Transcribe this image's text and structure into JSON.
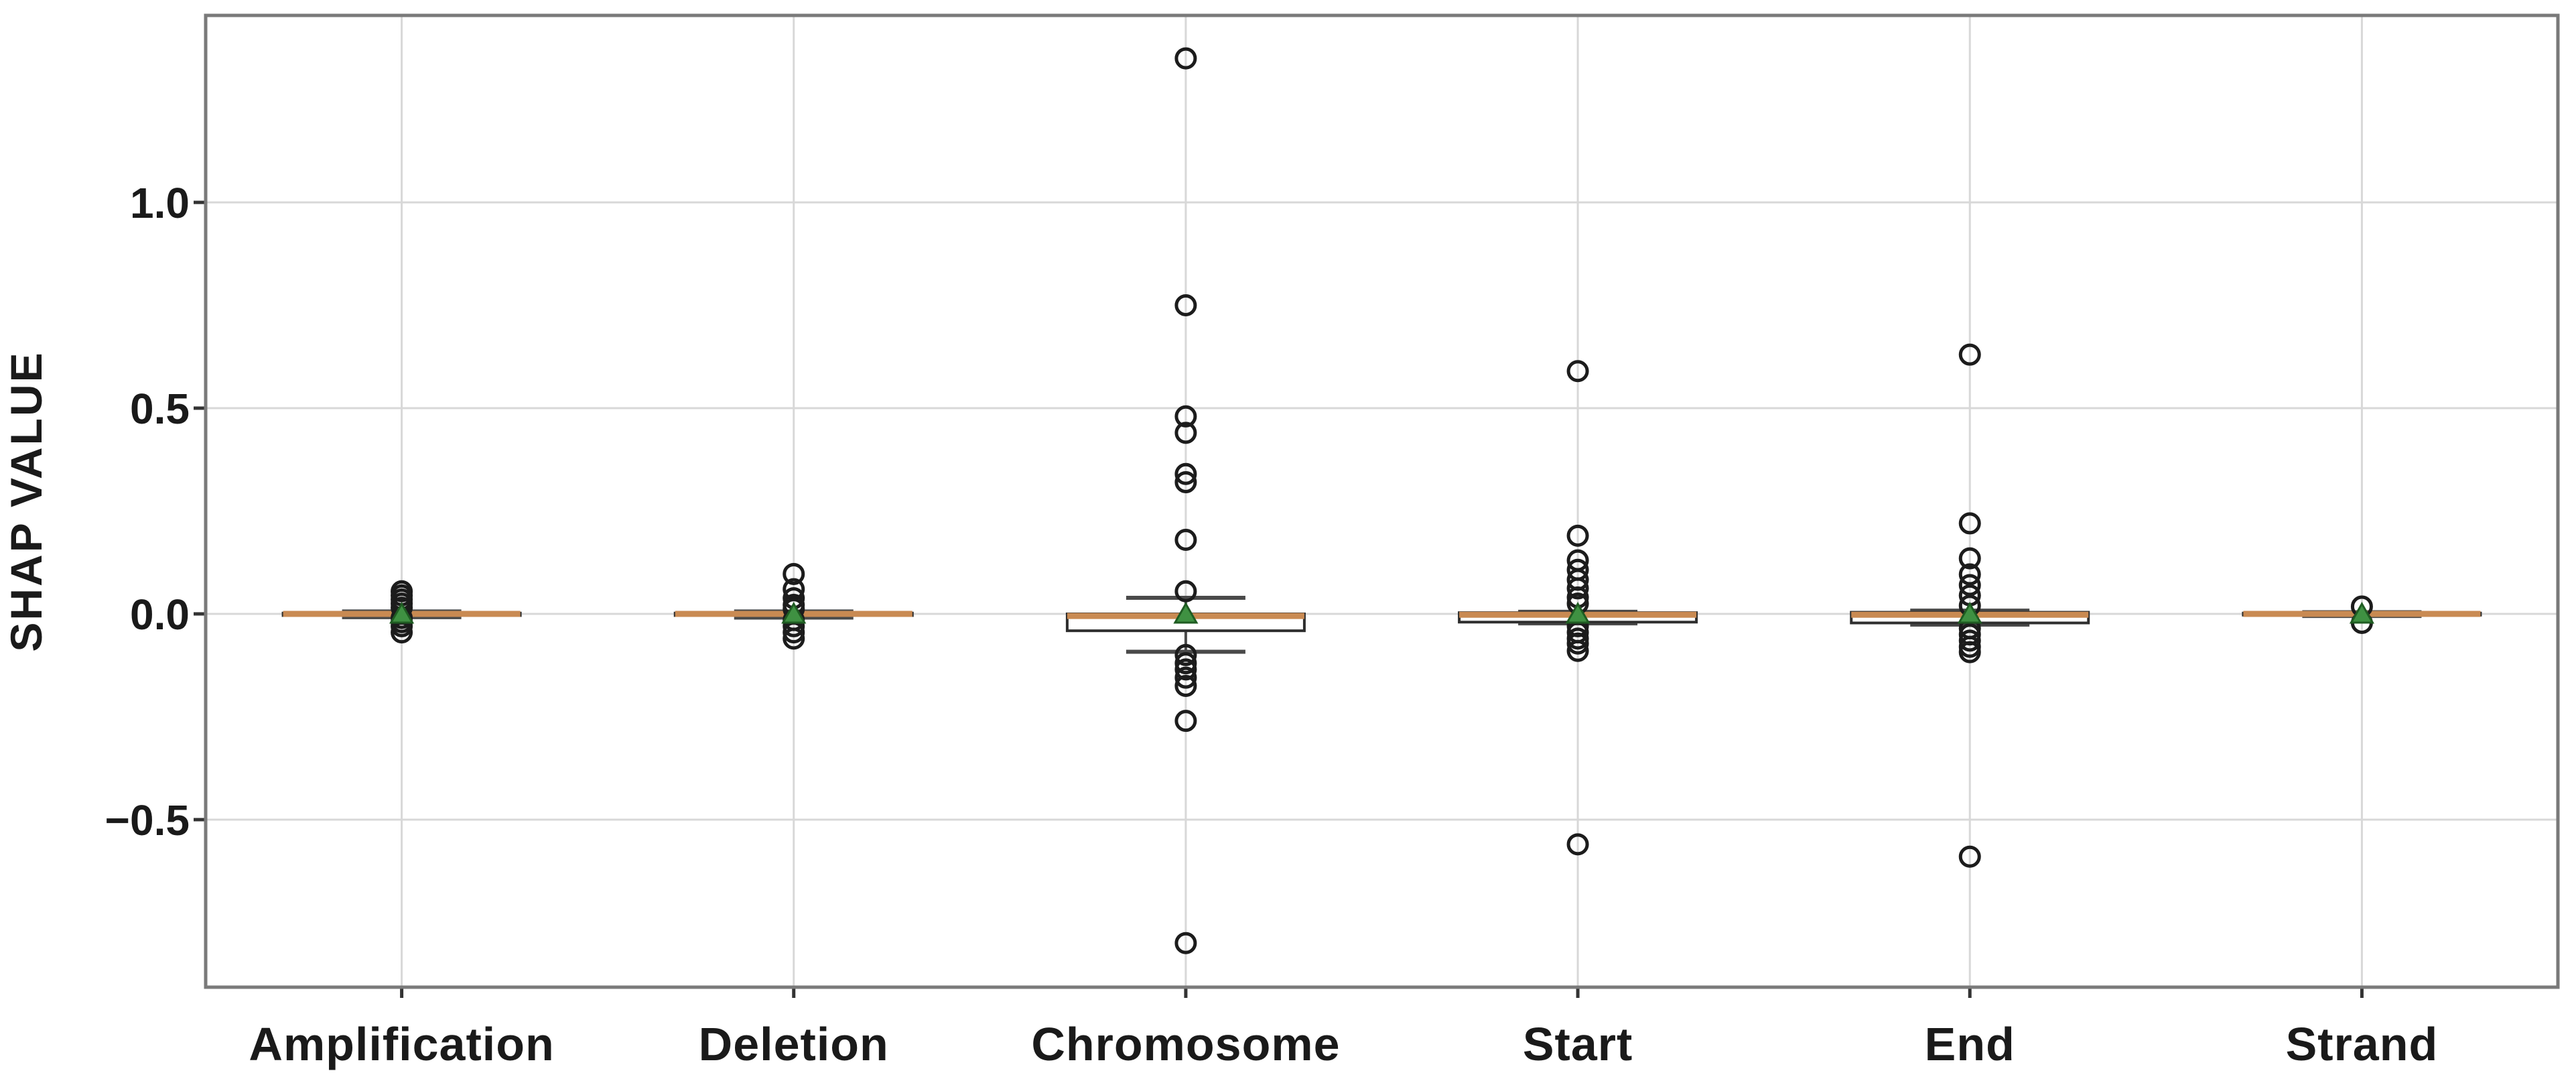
{
  "figure": {
    "kind": "boxplot-figure",
    "background": "#ffffff"
  },
  "chart_data": {
    "type": "boxplot",
    "title": "",
    "xlabel": "",
    "ylabel": "SHAP VALUE",
    "categories": [
      "Amplification",
      "Deletion",
      "Chromosome",
      "Start",
      "End",
      "Strand"
    ],
    "yticks": [
      {
        "label": "1.0",
        "value": 1.0
      },
      {
        "label": "0.5",
        "value": 0.5
      },
      {
        "label": "0.0",
        "value": 0.0
      },
      {
        "label": "−0.5",
        "value": -0.5
      }
    ],
    "ylim": [
      -0.91,
      1.45
    ],
    "grid": true,
    "legend": "none",
    "series": [
      {
        "name": "Amplification",
        "median": 0.0,
        "q1": -0.004,
        "q3": 0.002,
        "whisker_low": -0.008,
        "whisker_high": 0.006,
        "mean": 0.0,
        "outliers": [
          0.055,
          0.045,
          0.035,
          0.025,
          0.015,
          -0.01,
          -0.02,
          -0.03,
          -0.045
        ]
      },
      {
        "name": "Deletion",
        "median": 0.0,
        "q1": -0.004,
        "q3": 0.002,
        "whisker_low": -0.009,
        "whisker_high": 0.006,
        "mean": 0.0,
        "outliers": [
          0.097,
          0.06,
          0.038,
          0.022,
          0.012,
          -0.015,
          -0.03,
          -0.045,
          -0.06
        ]
      },
      {
        "name": "Chromosome",
        "median": -0.005,
        "q1": -0.041,
        "q3": 0.0,
        "whisker_low": -0.092,
        "whisker_high": 0.039,
        "mean": 0.0,
        "outliers": [
          1.35,
          0.75,
          0.48,
          0.44,
          0.34,
          0.32,
          0.18,
          0.055,
          -0.1,
          -0.12,
          -0.135,
          -0.155,
          -0.175,
          -0.26,
          -0.8
        ]
      },
      {
        "name": "Start",
        "median": -0.002,
        "q1": -0.02,
        "q3": 0.003,
        "whisker_low": -0.023,
        "whisker_high": 0.005,
        "mean": 0.0,
        "outliers": [
          0.59,
          0.19,
          0.13,
          0.107,
          0.083,
          0.062,
          0.04,
          0.025,
          -0.03,
          -0.045,
          -0.06,
          -0.072,
          -0.09,
          -0.56
        ]
      },
      {
        "name": "End",
        "median": -0.002,
        "q1": -0.022,
        "q3": 0.004,
        "whisker_low": -0.026,
        "whisker_high": 0.008,
        "mean": 0.0,
        "outliers": [
          0.63,
          0.22,
          0.135,
          0.096,
          0.07,
          0.045,
          0.02,
          -0.035,
          -0.05,
          -0.065,
          -0.08,
          -0.093,
          -0.59
        ]
      },
      {
        "name": "Strand",
        "median": 0.0,
        "q1": -0.003,
        "q3": 0.002,
        "whisker_low": -0.005,
        "whisker_high": 0.004,
        "mean": 0.0,
        "outliers": [
          0.018,
          -0.022
        ]
      }
    ],
    "colors": {
      "median": "#c98a52",
      "mean_fill": "#3f9142",
      "mean_edge": "#1f5c22",
      "outlier_edge": "#1c1c1c",
      "box_edge": "#2e2e2e",
      "whisker": "#4a4a4a",
      "grid": "#d8d8d8",
      "frame": "#7a7a7a",
      "tick": "#333333",
      "text": "#1a1a1a",
      "background": "#ffffff"
    }
  }
}
